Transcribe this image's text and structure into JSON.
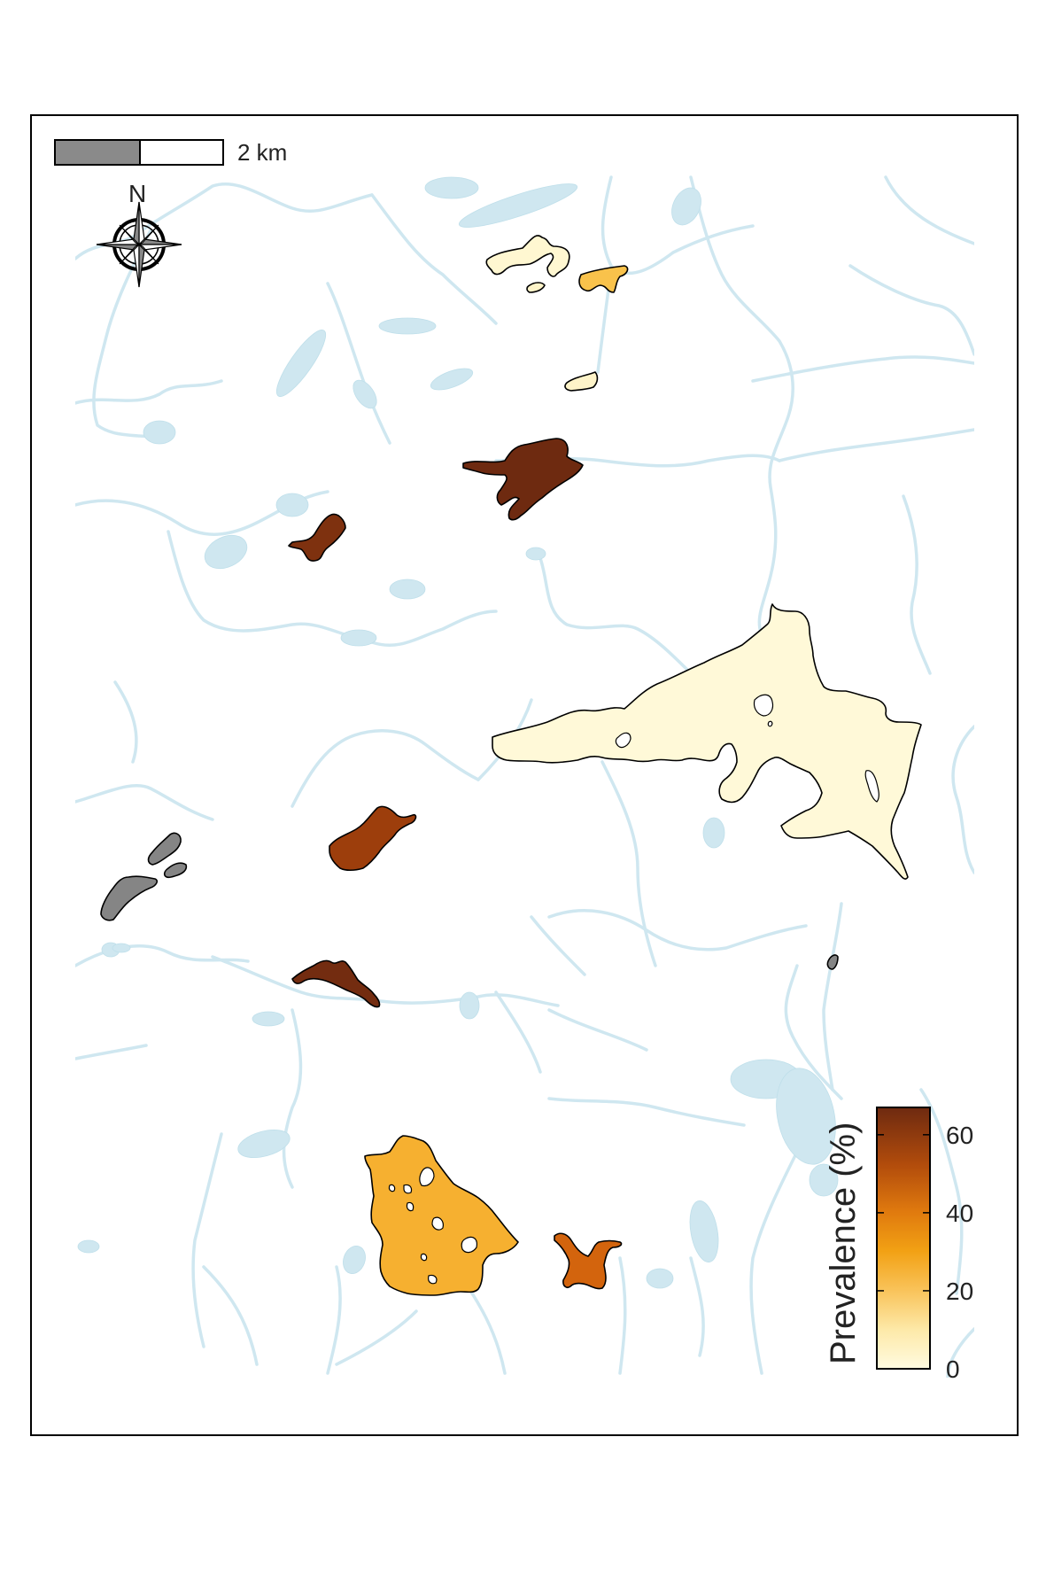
{
  "scale_bar": {
    "label": "2 km"
  },
  "north_arrow": {
    "label": "N",
    "icon": "compass-rose-icon"
  },
  "legend": {
    "title": "Prevalence (%)",
    "ticks": [
      "0",
      "20",
      "40",
      "60"
    ],
    "tick_values": [
      0,
      20,
      40,
      60
    ],
    "max_value": 67,
    "colors": [
      "#fffbe0",
      "#fde28a",
      "#f8b93a",
      "#ef9410",
      "#d9680d",
      "#a8430b",
      "#6e2a10"
    ]
  },
  "colors": {
    "water": "#cfe7f0",
    "no_data": "#858585",
    "frame": "#000000"
  },
  "lakes": [
    {
      "name": "lake-north-1",
      "prevalence": 2
    },
    {
      "name": "lake-north-2",
      "prevalence": 20
    },
    {
      "name": "lake-north-3",
      "prevalence": 3
    },
    {
      "name": "lake-north-small",
      "prevalence": 3
    },
    {
      "name": "lake-central-north",
      "prevalence": 67
    },
    {
      "name": "lake-west-upper",
      "prevalence": 64
    },
    {
      "name": "lake-large-east",
      "prevalence": 1
    },
    {
      "name": "lake-central",
      "prevalence": 58
    },
    {
      "name": "lake-west-grey-1",
      "prevalence": null
    },
    {
      "name": "lake-west-grey-2",
      "prevalence": null
    },
    {
      "name": "lake-west-grey-3",
      "prevalence": null
    },
    {
      "name": "lake-east-grey-small",
      "prevalence": null
    },
    {
      "name": "lake-central-south",
      "prevalence": 66
    },
    {
      "name": "lake-south-large",
      "prevalence": 25
    },
    {
      "name": "lake-south-small",
      "prevalence": 46
    }
  ]
}
